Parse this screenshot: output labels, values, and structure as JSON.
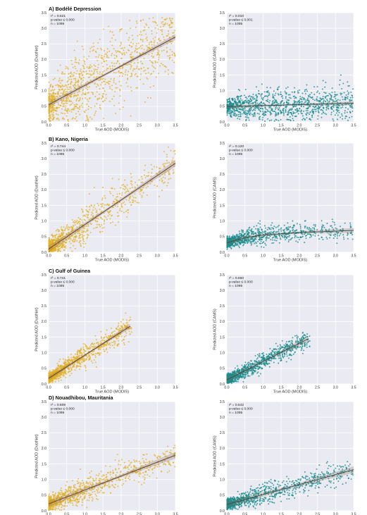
{
  "chart_data": [
    {
      "type": "scatter",
      "title": "A) Bodélé Depression",
      "xlabel": "True AOD (MODIS)",
      "ylabel": "Predicted AOD (DustNet)",
      "xlim": [
        0,
        3.5
      ],
      "ylim": [
        0,
        3.5
      ],
      "xticks": [
        "0.0",
        "0.5",
        "1.0",
        "1.5",
        "2.0",
        "2.5",
        "3.0",
        "3.5"
      ],
      "yticks": [
        "0.0",
        "0.5",
        "1.0",
        "1.5",
        "2.0",
        "2.5",
        "3.0",
        "3.5"
      ],
      "stats": [
        "r² = 0.621",
        "p-value ≤ 0.000",
        "n = 1095"
      ],
      "color": "#E3B127",
      "fit": {
        "x": [
          0.0,
          3.5
        ],
        "y": [
          0.55,
          2.72
        ],
        "band": 0.06
      },
      "point_profile": {
        "x_max": 3.5,
        "x_shape": 1.7,
        "noise": 0.55,
        "clip_y": 3.35
      },
      "grid": true
    },
    {
      "type": "scatter",
      "title": "",
      "xlabel": "True AOD (MODIS)",
      "ylabel": "Predicted AOD (CAMS)",
      "xlim": [
        0,
        3.5
      ],
      "ylim": [
        0,
        3.5
      ],
      "xticks": [
        "0.0",
        "0.5",
        "1.0",
        "1.5",
        "2.0",
        "2.5",
        "3.0",
        "3.5"
      ],
      "yticks": [
        "0.0",
        "0.5",
        "1.0",
        "1.5",
        "2.0",
        "2.5",
        "3.0",
        "3.5"
      ],
      "stats": [
        "r² = 0.010",
        "p-value ≤ 0.001",
        "n = 1095"
      ],
      "color": "#178C8C",
      "fit": {
        "x": [
          0.0,
          3.5
        ],
        "y": [
          0.49,
          0.6
        ],
        "band": 0.04
      },
      "point_profile": {
        "x_max": 3.5,
        "x_shape": 1.5,
        "noise": 0.25,
        "clip_y": 2.0
      },
      "grid": true
    },
    {
      "type": "scatter",
      "title": "B) Kano, Nigeria",
      "xlabel": "True AOD (MODIS)",
      "ylabel": "Predicted AOD (DustNet)",
      "xlim": [
        0,
        3.5
      ],
      "ylim": [
        0,
        3.5
      ],
      "xticks": [
        "0.0",
        "0.5",
        "1.0",
        "1.5",
        "2.0",
        "2.5",
        "3.0",
        "3.5"
      ],
      "yticks": [
        "0.0",
        "0.5",
        "1.0",
        "1.5",
        "2.0",
        "2.5",
        "3.0",
        "3.5"
      ],
      "stats": [
        "r² = 0.744",
        "p-value ≤ 0.000",
        "n = 1095"
      ],
      "color": "#E3B127",
      "fit": {
        "x": [
          0.0,
          3.5
        ],
        "y": [
          0.1,
          2.85
        ],
        "band": 0.07
      },
      "point_profile": {
        "x_max": 3.5,
        "x_shape": 3.2,
        "noise": 0.28,
        "clip_y": 3.4
      },
      "grid": true
    },
    {
      "type": "scatter",
      "title": "",
      "xlabel": "True AOD (MODIS)",
      "ylabel": "Predicted AOD (CAMS)",
      "xlim": [
        0,
        3.5
      ],
      "ylim": [
        0,
        3.5
      ],
      "xticks": [
        "0.0",
        "0.5",
        "1.0",
        "1.5",
        "2.0",
        "2.5",
        "3.0",
        "3.5"
      ],
      "yticks": [
        "0.0",
        "0.5",
        "1.0",
        "1.5",
        "2.0",
        "2.5",
        "3.0",
        "3.5"
      ],
      "stats": [
        "r² = 0.120",
        "p-value ≤ 0.000",
        "n = 1095"
      ],
      "color": "#178C8C",
      "fit": {
        "x": [
          0.0,
          0.5,
          1.0,
          2.0,
          3.5
        ],
        "y": [
          0.3,
          0.47,
          0.55,
          0.63,
          0.7
        ],
        "band": 0.05
      },
      "point_profile": {
        "x_max": 3.5,
        "x_shape": 3.0,
        "noise": 0.14,
        "clip_y": 1.2
      },
      "grid": true
    },
    {
      "type": "scatter",
      "title": "C) Gulf of Guinea",
      "xlabel": "True AOD (MODIS)",
      "ylabel": "Predicted AOD (DustNet)",
      "xlim": [
        0,
        3.5
      ],
      "ylim": [
        0,
        3.5
      ],
      "xticks": [
        "0.0",
        "0.5",
        "1.0",
        "1.5",
        "2.0",
        "2.5",
        "3.0",
        "3.5"
      ],
      "yticks": [
        "0.0",
        "0.5",
        "1.0",
        "1.5",
        "2.0",
        "2.5",
        "3.0",
        "3.5"
      ],
      "stats": [
        "r² = 0.741",
        "p-value ≤ 0.000",
        "n = 1095"
      ],
      "color": "#E3B127",
      "fit": {
        "x": [
          0.0,
          2.25
        ],
        "y": [
          0.18,
          1.85
        ],
        "band": 0.05
      },
      "point_profile": {
        "x_max": 2.3,
        "x_shape": 2.4,
        "noise": 0.16,
        "clip_y": 2.6
      },
      "grid": true
    },
    {
      "type": "scatter",
      "title": "",
      "xlabel": "True AOD (MODIS)",
      "ylabel": "Predicted AOD (CAMS)",
      "xlim": [
        0,
        3.5
      ],
      "ylim": [
        0,
        3.5
      ],
      "xticks": [
        "0.0",
        "0.5",
        "1.0",
        "1.5",
        "2.0",
        "2.5",
        "3.0",
        "3.5"
      ],
      "yticks": [
        "0.0",
        "0.5",
        "1.0",
        "1.5",
        "2.0",
        "2.5",
        "3.0",
        "3.5"
      ],
      "stats": [
        "r² = 0.660",
        "p-value ≤ 0.000",
        "n = 1095"
      ],
      "color": "#178C8C",
      "fit": {
        "x": [
          0.0,
          2.25
        ],
        "y": [
          0.13,
          1.45
        ],
        "band": 0.06
      },
      "point_profile": {
        "x_max": 2.3,
        "x_shape": 2.4,
        "noise": 0.14,
        "clip_y": 2.0
      },
      "grid": true
    },
    {
      "type": "scatter",
      "title": "D) Nouadhibou, Mauritania",
      "xlabel": "True AOD (MODIS)",
      "ylabel": "Predicted AOD (DustNet)",
      "xlim": [
        0,
        3.5
      ],
      "ylim": [
        0,
        3.5
      ],
      "xticks": [
        "0.0",
        "0.5",
        "1.0",
        "1.5",
        "2.0",
        "2.5",
        "3.0",
        "3.5"
      ],
      "yticks": [
        "0.0",
        "0.5",
        "1.0",
        "1.5",
        "2.0",
        "2.5",
        "3.0",
        "3.5"
      ],
      "stats": [
        "r² = 0.609",
        "p-value ≤ 0.000",
        "n = 1095"
      ],
      "color": "#E3B127",
      "fit": {
        "x": [
          0.0,
          3.5
        ],
        "y": [
          0.22,
          1.78
        ],
        "band": 0.07
      },
      "point_profile": {
        "x_max": 3.5,
        "x_shape": 3.0,
        "noise": 0.2,
        "clip_y": 2.4
      },
      "grid": true
    },
    {
      "type": "scatter",
      "title": "",
      "xlabel": "True AOD (MODIS)",
      "ylabel": "Predicted AOD (CAMS)",
      "xlim": [
        0,
        3.5
      ],
      "ylim": [
        0,
        3.5
      ],
      "xticks": [
        "0.0",
        "0.5",
        "1.0",
        "1.5",
        "2.0",
        "2.5",
        "3.0",
        "3.5"
      ],
      "yticks": [
        "0.0",
        "0.5",
        "1.0",
        "1.5",
        "2.0",
        "2.5",
        "3.0",
        "3.5"
      ],
      "stats": [
        "r² = 0.542",
        "p-value ≤ 0.000",
        "n = 1095"
      ],
      "color": "#178C8C",
      "fit": {
        "x": [
          0.0,
          3.5
        ],
        "y": [
          0.2,
          1.32
        ],
        "band": 0.07
      },
      "point_profile": {
        "x_max": 3.5,
        "x_shape": 3.0,
        "noise": 0.16,
        "clip_y": 2.1
      },
      "grid": true
    }
  ]
}
